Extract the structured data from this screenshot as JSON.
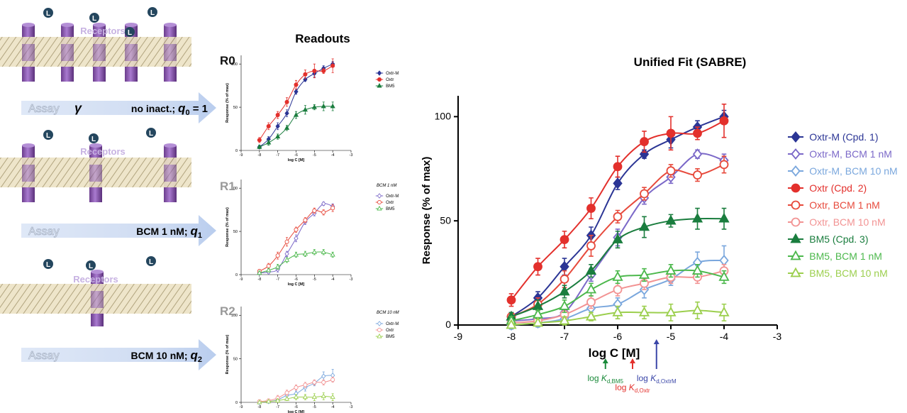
{
  "diagram": {
    "ligand": "L",
    "rows": [
      {
        "receptors": "Receptors",
        "assay": "Assay",
        "gamma": "γ",
        "condition": "no inact.; ",
        "q": "q",
        "q_index": "0",
        "q_value": " = 1"
      },
      {
        "receptors": "Receptors",
        "assay": "Assay",
        "condition": "BCM 1 nM; ",
        "q": "q",
        "q_index": "1"
      },
      {
        "receptors": "Receptors",
        "assay": "Assay",
        "condition": "BCM 10 nM; ",
        "q": "q",
        "q_index": "2"
      }
    ]
  },
  "readouts_title": "Readouts",
  "chart_data": [
    {
      "type": "line",
      "panel_label": "R0",
      "x": [
        -8,
        -7.5,
        -7,
        -6.5,
        -6,
        -5.5,
        -5,
        -4.5,
        -4
      ],
      "xlim": [
        -9,
        -3
      ],
      "xticks": [
        -9,
        -8,
        -7,
        -6,
        -5,
        -4,
        -3
      ],
      "ylim": [
        0,
        110
      ],
      "yticks": [
        0,
        50,
        100
      ],
      "xlabel": "log C [M]",
      "ylabel": "Response (% of max)",
      "series": [
        {
          "name": "Oxtr-M",
          "color": "#2b3595",
          "marker": "diamond",
          "filled": true,
          "values": [
            4,
            13,
            28,
            43,
            68,
            82,
            89,
            95,
            100
          ],
          "errors": [
            2,
            3,
            4,
            4,
            3,
            2,
            4,
            3,
            3
          ]
        },
        {
          "name": "Oxtr",
          "color": "#e3302c",
          "marker": "circle",
          "filled": true,
          "values": [
            12,
            28,
            41,
            56,
            76,
            88,
            92,
            92,
            98
          ],
          "errors": [
            3,
            4,
            4,
            5,
            5,
            5,
            8,
            3,
            8
          ]
        },
        {
          "name": "BM5",
          "color": "#1a7d3e",
          "marker": "triangle",
          "filled": true,
          "values": [
            4,
            9,
            16,
            26,
            41,
            47,
            50,
            51,
            51
          ],
          "errors": [
            2,
            3,
            3,
            3,
            4,
            5,
            3,
            5,
            5
          ]
        }
      ]
    },
    {
      "type": "line",
      "panel_label": "R1",
      "subtitle": "BCM 1 nM",
      "x": [
        -8,
        -7.5,
        -7,
        -6.5,
        -6,
        -5.5,
        -5,
        -4.5,
        -4
      ],
      "xlim": [
        -9,
        -3
      ],
      "xticks": [
        -9,
        -8,
        -7,
        -6,
        -5,
        -4,
        -3
      ],
      "ylim": [
        0,
        110
      ],
      "yticks": [
        0,
        50,
        100
      ],
      "xlabel": "log C [M]",
      "ylabel": "Response (% of max)",
      "series": [
        {
          "name": "Oxtr-M",
          "color": "#7b68c8",
          "marker": "diamond",
          "filled": false,
          "values": [
            2,
            3,
            6,
            24,
            42,
            61,
            71,
            82,
            79
          ],
          "errors": [
            2,
            2,
            3,
            3,
            4,
            3,
            3,
            2,
            3
          ]
        },
        {
          "name": "Oxtr",
          "color": "#e74a3c",
          "marker": "circle",
          "filled": false,
          "values": [
            4,
            10,
            22,
            38,
            52,
            63,
            74,
            72,
            77
          ],
          "errors": [
            2,
            3,
            4,
            5,
            3,
            3,
            3,
            3,
            4
          ]
        },
        {
          "name": "BM5",
          "color": "#4cb84c",
          "marker": "triangle",
          "filled": false,
          "values": [
            2,
            5,
            9,
            17,
            23,
            24,
            26,
            26,
            23
          ],
          "errors": [
            2,
            2,
            3,
            3,
            3,
            3,
            3,
            3,
            3
          ]
        }
      ]
    },
    {
      "type": "line",
      "panel_label": "R2",
      "subtitle": "BCM 10 nM",
      "x": [
        -8,
        -7.5,
        -7,
        -6.5,
        -6,
        -5.5,
        -5,
        -4.5,
        -4
      ],
      "xlim": [
        -9,
        -3
      ],
      "xticks": [
        -9,
        -8,
        -7,
        -6,
        -5,
        -4,
        -3
      ],
      "ylim": [
        0,
        110
      ],
      "yticks": [
        0,
        50,
        100
      ],
      "xlabel": "log C [M]",
      "ylabel": "Response (% of max)",
      "series": [
        {
          "name": "Oxtr-M",
          "color": "#7aa7dd",
          "marker": "diamond",
          "filled": false,
          "values": [
            0,
            1,
            3,
            8,
            10,
            17,
            22,
            30,
            31
          ],
          "errors": [
            2,
            2,
            2,
            3,
            3,
            4,
            3,
            5,
            7
          ]
        },
        {
          "name": "Oxtr",
          "color": "#f29393",
          "marker": "circle",
          "filled": false,
          "values": [
            1,
            2,
            5,
            11,
            17,
            20,
            23,
            23,
            26
          ],
          "errors": [
            2,
            2,
            3,
            3,
            3,
            3,
            3,
            3,
            3
          ]
        },
        {
          "name": "BM5",
          "color": "#9ccf4e",
          "marker": "triangle",
          "filled": false,
          "values": [
            0,
            1,
            2,
            4,
            6,
            6,
            6,
            7,
            6
          ],
          "errors": [
            1,
            1,
            2,
            2,
            3,
            3,
            4,
            4,
            4
          ]
        }
      ]
    },
    {
      "type": "line",
      "title": "Unified Fit (SABRE)",
      "x": [
        -8,
        -7.5,
        -7,
        -6.5,
        -6,
        -5.5,
        -5,
        -4.5,
        -4
      ],
      "xlim": [
        -9,
        -3
      ],
      "xticks": [
        -9,
        -8,
        -7,
        -6,
        -5,
        -4,
        -3
      ],
      "ylim": [
        0,
        110
      ],
      "yticks": [
        0,
        50,
        100
      ],
      "xlabel": "log C [M]",
      "ylabel": "Response (% of max)",
      "series": [
        {
          "name": "Oxtr-M (Cpd. 1)",
          "color": "#2b3595",
          "marker": "diamond",
          "filled": true,
          "values": [
            4,
            13,
            28,
            43,
            68,
            82,
            89,
            95,
            100
          ],
          "errors": [
            2,
            3,
            4,
            4,
            3,
            2,
            4,
            3,
            3
          ]
        },
        {
          "name": "Oxtr-M, BCM 1 nM",
          "color": "#7b68c8",
          "marker": "diamond",
          "filled": false,
          "values": [
            2,
            3,
            6,
            24,
            42,
            61,
            71,
            82,
            79
          ],
          "errors": [
            2,
            2,
            3,
            3,
            4,
            3,
            3,
            2,
            3
          ]
        },
        {
          "name": "Oxtr-M, BCM 10 nM",
          "color": "#7aa7dd",
          "marker": "diamond",
          "filled": false,
          "values": [
            0,
            1,
            3,
            8,
            10,
            17,
            22,
            30,
            31
          ],
          "errors": [
            2,
            2,
            2,
            3,
            3,
            4,
            3,
            5,
            7
          ]
        },
        {
          "name": "Oxtr (Cpd. 2)",
          "color": "#e3302c",
          "marker": "circle",
          "filled": true,
          "values": [
            12,
            28,
            41,
            56,
            76,
            88,
            92,
            92,
            98
          ],
          "errors": [
            3,
            4,
            4,
            5,
            5,
            5,
            8,
            3,
            8
          ]
        },
        {
          "name": "Oxtr, BCM 1 nM",
          "color": "#e74a3c",
          "marker": "circle",
          "filled": false,
          "values": [
            4,
            10,
            22,
            38,
            52,
            63,
            74,
            72,
            77
          ],
          "errors": [
            2,
            3,
            4,
            5,
            3,
            3,
            3,
            3,
            4
          ]
        },
        {
          "name": "Oxtr, BCM 10 nM",
          "color": "#f29393",
          "marker": "circle",
          "filled": false,
          "values": [
            1,
            2,
            5,
            11,
            17,
            20,
            23,
            23,
            26
          ],
          "errors": [
            2,
            2,
            3,
            3,
            3,
            3,
            3,
            3,
            3
          ]
        },
        {
          "name": "BM5 (Cpd. 3)",
          "color": "#1a7d3e",
          "marker": "triangle",
          "filled": true,
          "values": [
            4,
            9,
            16,
            26,
            41,
            47,
            50,
            51,
            51
          ],
          "errors": [
            2,
            3,
            3,
            3,
            4,
            5,
            3,
            5,
            5
          ]
        },
        {
          "name": "BM5, BCM 1 nM",
          "color": "#4cb84c",
          "marker": "triangle",
          "filled": false,
          "values": [
            2,
            5,
            9,
            17,
            23,
            24,
            26,
            26,
            23
          ],
          "errors": [
            2,
            2,
            3,
            3,
            3,
            3,
            3,
            3,
            3
          ]
        },
        {
          "name": "BM5, BCM 10 nM",
          "color": "#9ccf4e",
          "marker": "triangle",
          "filled": false,
          "values": [
            0,
            1,
            2,
            4,
            6,
            6,
            6,
            7,
            6
          ],
          "errors": [
            1,
            1,
            2,
            2,
            3,
            3,
            4,
            4,
            4
          ]
        }
      ],
      "annotations": [
        {
          "text": "log ",
          "symbol": "K",
          "subscript": "d,BM5",
          "x": -6.23,
          "color": "#1a8a3a"
        },
        {
          "text": "log ",
          "symbol": "K",
          "subscript": "d,Oxtr",
          "x": -5.72,
          "color": "#e3302c"
        },
        {
          "text": "log ",
          "symbol": "K",
          "subscript": "d,OxtrM",
          "x": -5.27,
          "color": "#3a46a8"
        }
      ]
    }
  ]
}
